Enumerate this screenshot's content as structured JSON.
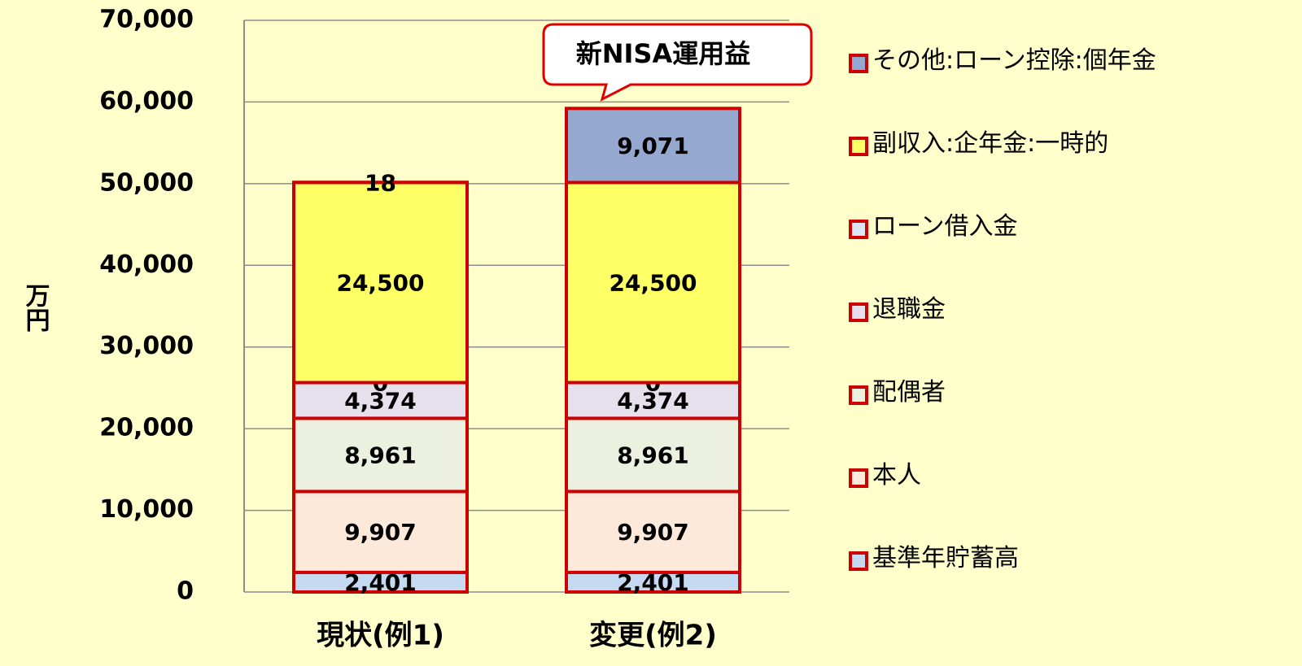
{
  "chart_data": {
    "type": "bar",
    "stacked": true,
    "y_label": "万円",
    "annotation": "新NISA運用益",
    "categories": [
      "現状(例1)",
      "変更(例2)"
    ],
    "ylim": [
      0,
      70000
    ],
    "yticks": [
      0,
      {
        "value": 10000,
        "label": "10,000"
      },
      {
        "value": 20000,
        "label": "20,000"
      },
      {
        "value": 30000,
        "label": "30,000"
      },
      {
        "value": 40000,
        "label": "40,000"
      },
      {
        "value": 50000,
        "label": "50,000"
      },
      {
        "value": 60000,
        "label": "60,000"
      },
      {
        "value": 70000,
        "label": "70,000"
      }
    ],
    "grid": true,
    "legend": "right",
    "series": [
      {
        "name": "基準年貯蓄高",
        "color": "#c5d9f1",
        "values": [
          2401,
          2401
        ],
        "value_labels": [
          "2,401",
          "2,401"
        ]
      },
      {
        "name": "本人",
        "color": "#fde9d9",
        "values": [
          9907,
          9907
        ],
        "value_labels": [
          "9,907",
          "9,907"
        ]
      },
      {
        "name": "配偶者",
        "color": "#ebf1de",
        "values": [
          8961,
          8961
        ],
        "value_labels": [
          "8,961",
          "8,961"
        ]
      },
      {
        "name": "退職金",
        "color": "#e6e0ec",
        "values": [
          4374,
          4374
        ],
        "value_labels": [
          "4,374",
          "4,374"
        ]
      },
      {
        "name": "ローン借入金",
        "color": "#dce6f2",
        "values": [
          0,
          0
        ]
      },
      {
        "name": "副収入:企年金:一時的",
        "color": "#ffff66",
        "values": [
          24500,
          24500
        ],
        "value_labels": [
          "24,500",
          "24,500"
        ]
      },
      {
        "name": "その他:ローン控除:個年金",
        "color": "#95a9d0",
        "values": [
          18,
          9071
        ],
        "value_labels": [
          "18",
          "9,071"
        ]
      }
    ]
  }
}
